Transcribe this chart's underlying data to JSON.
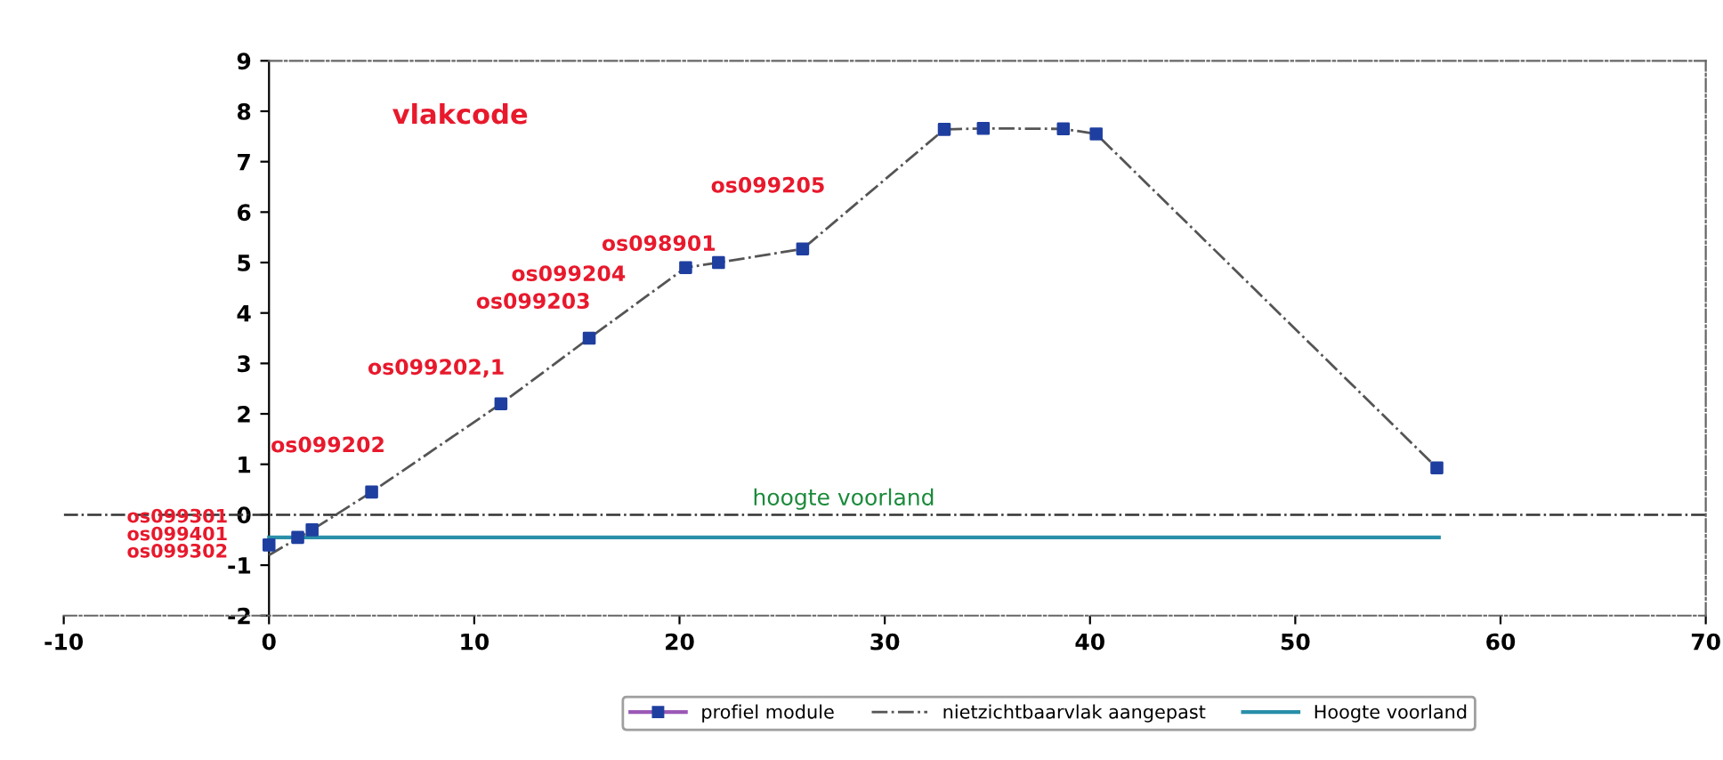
{
  "chart_data": {
    "type": "line",
    "xlim": [
      -10,
      70
    ],
    "xticks": [
      -10,
      0,
      10,
      20,
      30,
      40,
      50,
      60,
      70
    ],
    "ylim": [
      -2,
      9
    ],
    "yticks": [
      -2,
      -1,
      0,
      1,
      2,
      3,
      4,
      5,
      6,
      7,
      8,
      9
    ],
    "grid": false,
    "legend": "bottom",
    "series": [
      {
        "name": "profiel module",
        "type": "scatter",
        "marker": "square",
        "color": "#1f3fa0",
        "x": [
          0,
          1.4,
          2.1,
          5.0,
          11.3,
          15.6,
          20.3,
          21.9,
          26.0,
          32.9,
          34.8,
          38.7,
          40.3,
          56.9
        ],
        "values": [
          -0.6,
          -0.45,
          -0.3,
          0.45,
          2.2,
          3.5,
          4.9,
          5.0,
          5.27,
          7.64,
          7.66,
          7.65,
          7.55,
          0.93
        ]
      },
      {
        "name": "nietzichtbaarvlak aangepast",
        "line_style": "dashed",
        "color": "#555555",
        "x": [
          0,
          2.1,
          5.0,
          11.3,
          15.6,
          20.3,
          21.9,
          26.0,
          32.9,
          34.8,
          38.7,
          40.3,
          56.9
        ],
        "values": [
          -0.8,
          -0.3,
          0.45,
          2.2,
          3.5,
          4.9,
          5.0,
          5.27,
          7.64,
          7.66,
          7.65,
          7.55,
          0.93
        ]
      },
      {
        "name": "Hoogte voorland",
        "line_style": "solid",
        "color": "#2a8fa8",
        "x": [
          0,
          57
        ],
        "values": [
          -0.45,
          -0.45
        ]
      }
    ],
    "ref_lines": [
      {
        "axis": "y",
        "value": 0,
        "color": "#333333",
        "line_style": "dashed"
      }
    ],
    "annotations": [
      "vlakcode",
      "os099302",
      "os099401",
      "os099301",
      "os099202",
      "os099202,1",
      "os099203",
      "os099204",
      "os098901",
      "os099205",
      {
        "text": "hoogte voorland",
        "x": 28,
        "y": 0
      }
    ]
  }
}
